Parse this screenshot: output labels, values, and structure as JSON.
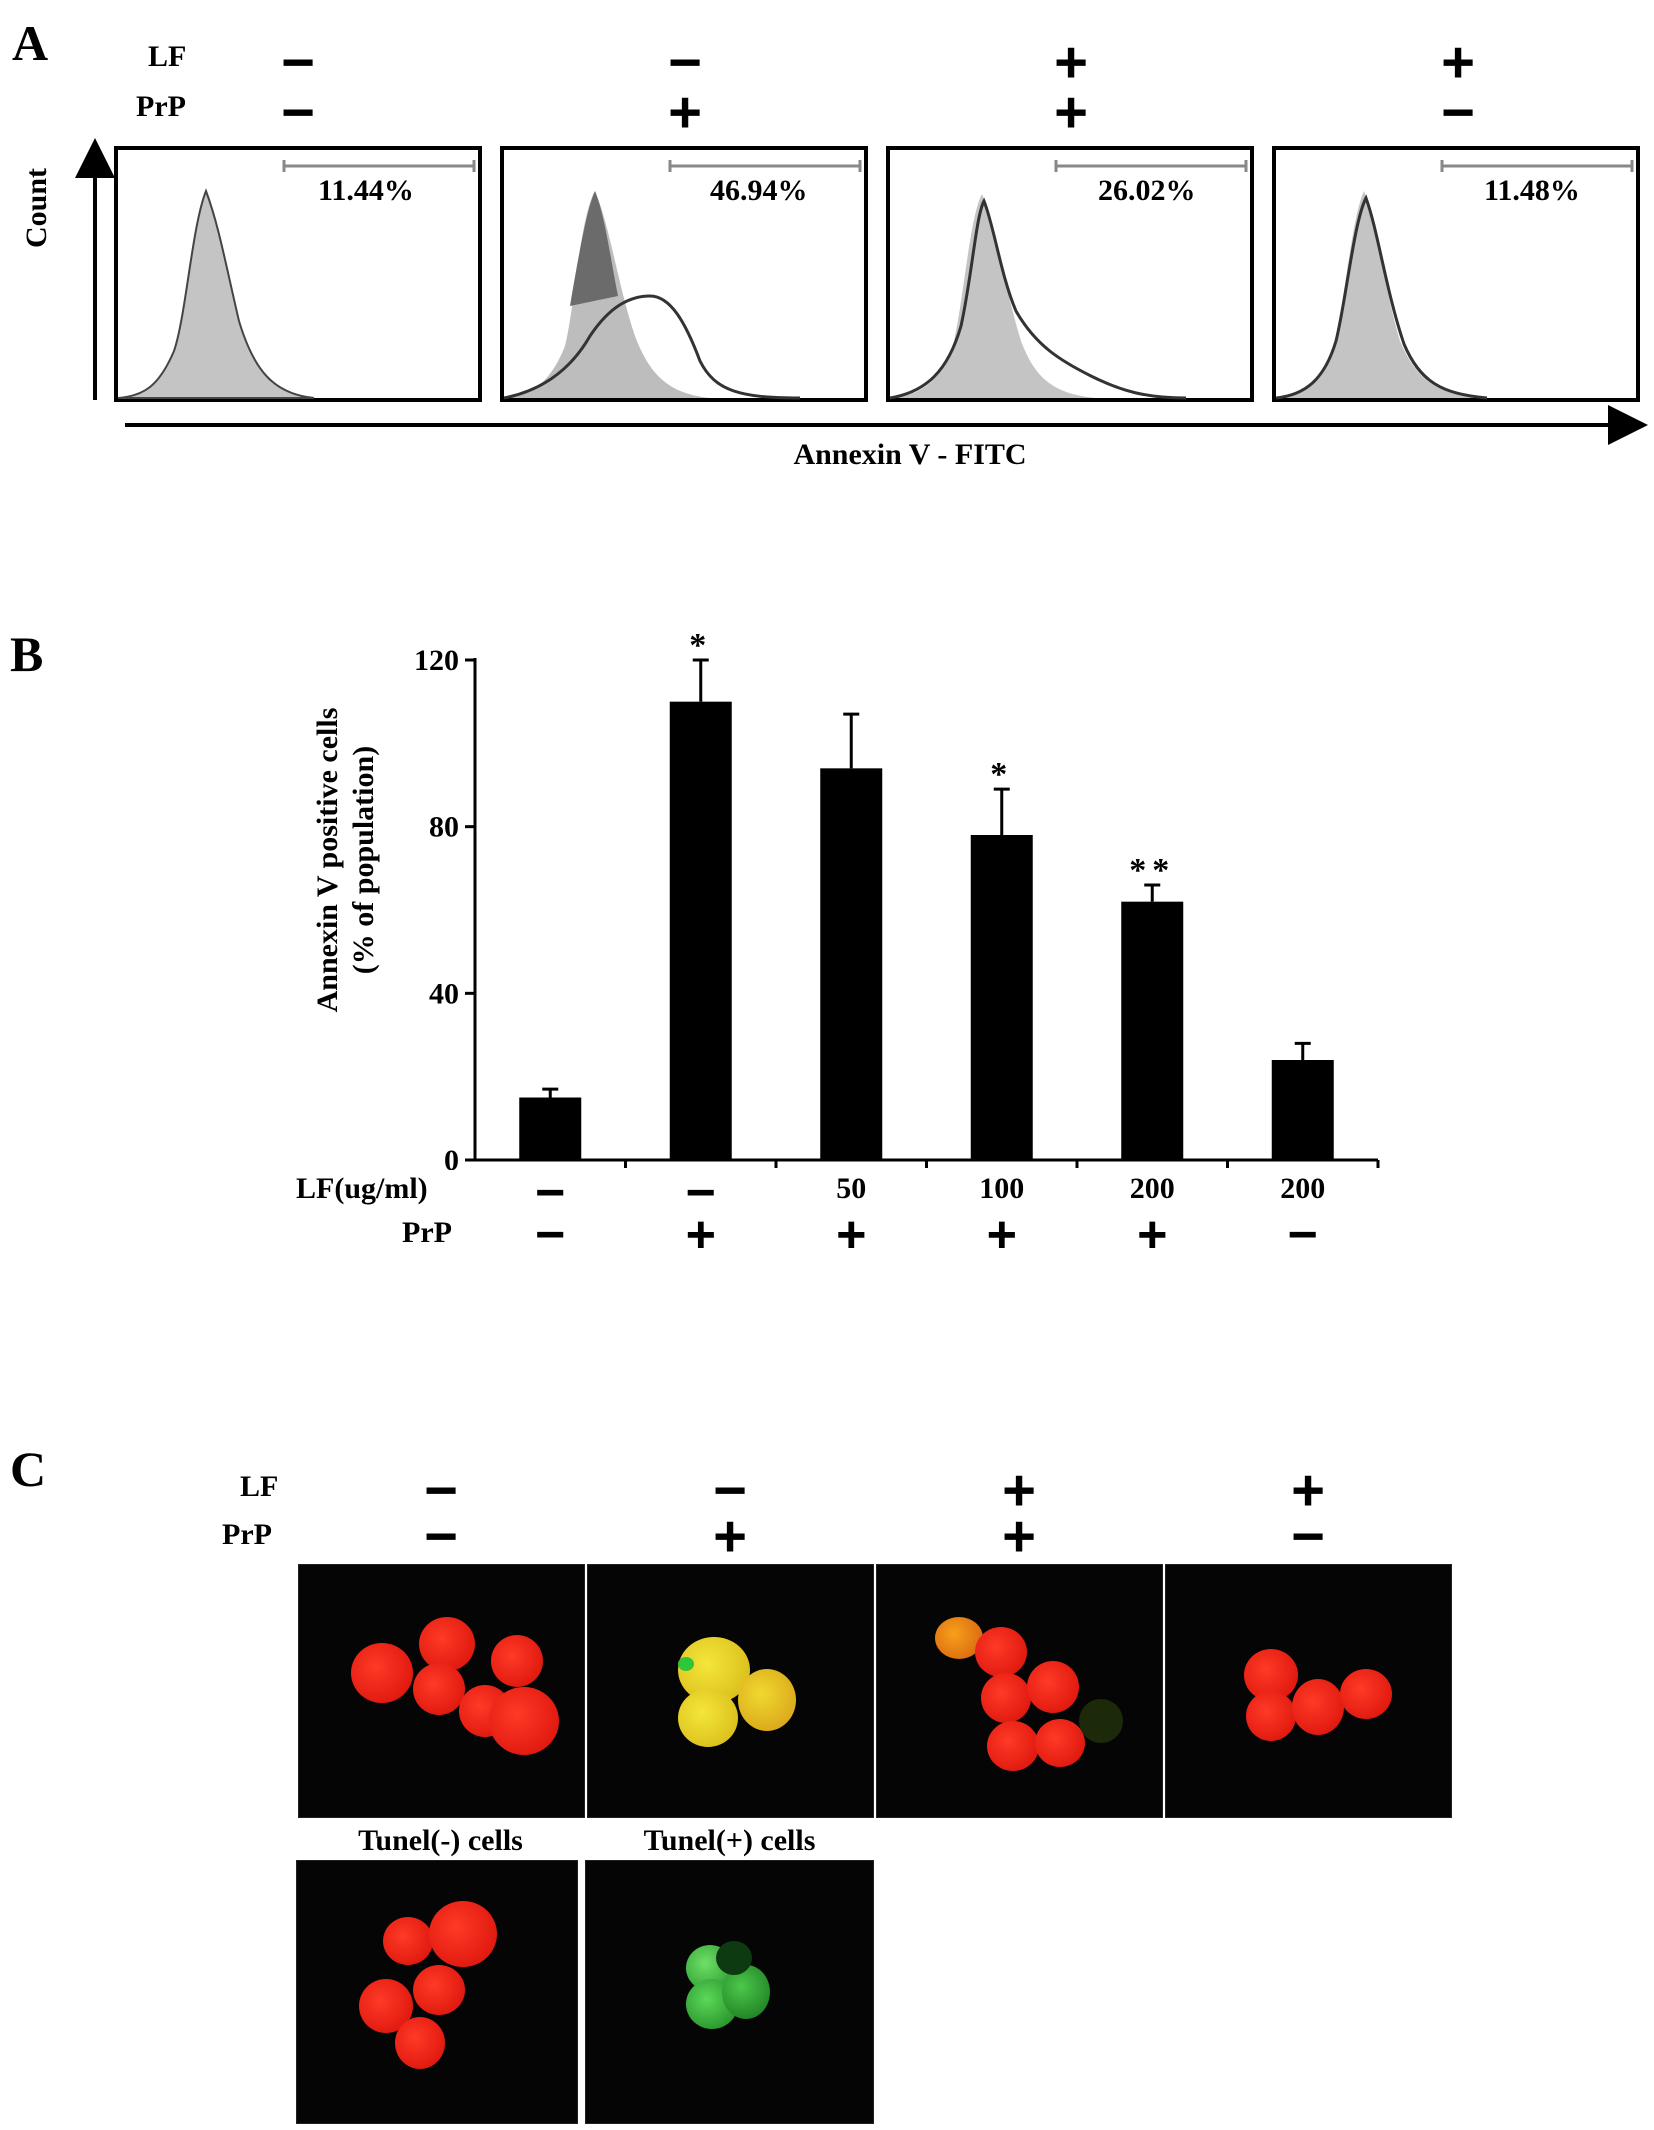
{
  "panel_a": {
    "letter": "A",
    "lf_label": "LF",
    "prp_label": "PrP",
    "columns": [
      {
        "lf": "−",
        "prp": "−",
        "percent": "11.44%"
      },
      {
        "lf": "−",
        "prp": "+",
        "percent": "46.94%"
      },
      {
        "lf": "+",
        "prp": "+",
        "percent": "26.02%"
      },
      {
        "lf": "+",
        "prp": "−",
        "percent": "11.48%"
      }
    ],
    "y_axis_label": "Count",
    "x_axis_label": "Annexin V - FITC"
  },
  "panel_b": {
    "letter": "B",
    "lf_label": "LF(ug/ml)",
    "prp_label": "PrP",
    "lf_values": [
      "−",
      "−",
      "50",
      "100",
      "200",
      "200"
    ],
    "prp_values": [
      "−",
      "+",
      "+",
      "+",
      "+",
      "−"
    ]
  },
  "chart_data": {
    "type": "bar",
    "categories": [
      "1",
      "2",
      "3",
      "4",
      "5",
      "6"
    ],
    "values": [
      15,
      110,
      94,
      78,
      62,
      24
    ],
    "errors": [
      2,
      10,
      13,
      11,
      4,
      4
    ],
    "significance": [
      "",
      "*",
      "",
      "*",
      "**",
      ""
    ],
    "ylabel": "Annexin V positive cells (% of population)",
    "ylabel_line1": "Annexin V positive cells",
    "ylabel_line2": "(% of population)",
    "ylim": [
      0,
      120
    ],
    "yticks": [
      0,
      40,
      80,
      120
    ],
    "bar_color": "#000000"
  },
  "panel_c": {
    "letter": "C",
    "lf_label": "LF",
    "prp_label": "PrP",
    "columns": [
      {
        "lf": "−",
        "prp": "−"
      },
      {
        "lf": "−",
        "prp": "+"
      },
      {
        "lf": "+",
        "prp": "+"
      },
      {
        "lf": "+",
        "prp": "−"
      }
    ],
    "control_labels": [
      "Tunel(-) cells",
      "Tunel(+) cells"
    ],
    "colors": {
      "red_cell": "#e8140e",
      "yellow_cell": "#e6d21a",
      "green_cell": "#2fc63a",
      "background": "#050505"
    }
  }
}
